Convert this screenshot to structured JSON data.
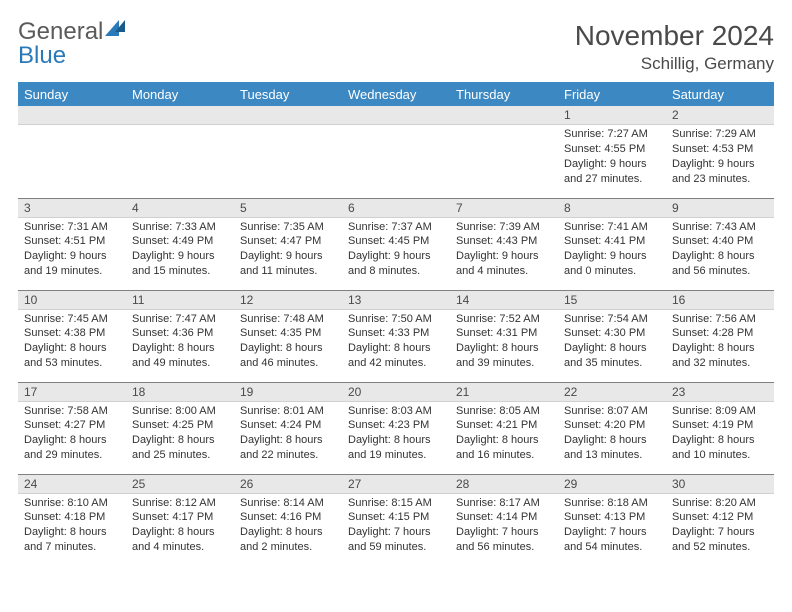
{
  "brand": {
    "top": "General",
    "bottom": "Blue"
  },
  "title": "November 2024",
  "location": "Schillig, Germany",
  "colors": {
    "header_bg": "#3b88c3",
    "header_text": "#ffffff",
    "daynum_bg": "#e8e8e8",
    "border": "#808080",
    "text": "#333333",
    "title_text": "#4a4a4a",
    "logo_blue": "#2a7ab9"
  },
  "weekdays": [
    "Sunday",
    "Monday",
    "Tuesday",
    "Wednesday",
    "Thursday",
    "Friday",
    "Saturday"
  ],
  "weeks": [
    [
      {
        "n": "",
        "sr": "",
        "ss": "",
        "dl": ""
      },
      {
        "n": "",
        "sr": "",
        "ss": "",
        "dl": ""
      },
      {
        "n": "",
        "sr": "",
        "ss": "",
        "dl": ""
      },
      {
        "n": "",
        "sr": "",
        "ss": "",
        "dl": ""
      },
      {
        "n": "",
        "sr": "",
        "ss": "",
        "dl": ""
      },
      {
        "n": "1",
        "sr": "Sunrise: 7:27 AM",
        "ss": "Sunset: 4:55 PM",
        "dl": "Daylight: 9 hours and 27 minutes."
      },
      {
        "n": "2",
        "sr": "Sunrise: 7:29 AM",
        "ss": "Sunset: 4:53 PM",
        "dl": "Daylight: 9 hours and 23 minutes."
      }
    ],
    [
      {
        "n": "3",
        "sr": "Sunrise: 7:31 AM",
        "ss": "Sunset: 4:51 PM",
        "dl": "Daylight: 9 hours and 19 minutes."
      },
      {
        "n": "4",
        "sr": "Sunrise: 7:33 AM",
        "ss": "Sunset: 4:49 PM",
        "dl": "Daylight: 9 hours and 15 minutes."
      },
      {
        "n": "5",
        "sr": "Sunrise: 7:35 AM",
        "ss": "Sunset: 4:47 PM",
        "dl": "Daylight: 9 hours and 11 minutes."
      },
      {
        "n": "6",
        "sr": "Sunrise: 7:37 AM",
        "ss": "Sunset: 4:45 PM",
        "dl": "Daylight: 9 hours and 8 minutes."
      },
      {
        "n": "7",
        "sr": "Sunrise: 7:39 AM",
        "ss": "Sunset: 4:43 PM",
        "dl": "Daylight: 9 hours and 4 minutes."
      },
      {
        "n": "8",
        "sr": "Sunrise: 7:41 AM",
        "ss": "Sunset: 4:41 PM",
        "dl": "Daylight: 9 hours and 0 minutes."
      },
      {
        "n": "9",
        "sr": "Sunrise: 7:43 AM",
        "ss": "Sunset: 4:40 PM",
        "dl": "Daylight: 8 hours and 56 minutes."
      }
    ],
    [
      {
        "n": "10",
        "sr": "Sunrise: 7:45 AM",
        "ss": "Sunset: 4:38 PM",
        "dl": "Daylight: 8 hours and 53 minutes."
      },
      {
        "n": "11",
        "sr": "Sunrise: 7:47 AM",
        "ss": "Sunset: 4:36 PM",
        "dl": "Daylight: 8 hours and 49 minutes."
      },
      {
        "n": "12",
        "sr": "Sunrise: 7:48 AM",
        "ss": "Sunset: 4:35 PM",
        "dl": "Daylight: 8 hours and 46 minutes."
      },
      {
        "n": "13",
        "sr": "Sunrise: 7:50 AM",
        "ss": "Sunset: 4:33 PM",
        "dl": "Daylight: 8 hours and 42 minutes."
      },
      {
        "n": "14",
        "sr": "Sunrise: 7:52 AM",
        "ss": "Sunset: 4:31 PM",
        "dl": "Daylight: 8 hours and 39 minutes."
      },
      {
        "n": "15",
        "sr": "Sunrise: 7:54 AM",
        "ss": "Sunset: 4:30 PM",
        "dl": "Daylight: 8 hours and 35 minutes."
      },
      {
        "n": "16",
        "sr": "Sunrise: 7:56 AM",
        "ss": "Sunset: 4:28 PM",
        "dl": "Daylight: 8 hours and 32 minutes."
      }
    ],
    [
      {
        "n": "17",
        "sr": "Sunrise: 7:58 AM",
        "ss": "Sunset: 4:27 PM",
        "dl": "Daylight: 8 hours and 29 minutes."
      },
      {
        "n": "18",
        "sr": "Sunrise: 8:00 AM",
        "ss": "Sunset: 4:25 PM",
        "dl": "Daylight: 8 hours and 25 minutes."
      },
      {
        "n": "19",
        "sr": "Sunrise: 8:01 AM",
        "ss": "Sunset: 4:24 PM",
        "dl": "Daylight: 8 hours and 22 minutes."
      },
      {
        "n": "20",
        "sr": "Sunrise: 8:03 AM",
        "ss": "Sunset: 4:23 PM",
        "dl": "Daylight: 8 hours and 19 minutes."
      },
      {
        "n": "21",
        "sr": "Sunrise: 8:05 AM",
        "ss": "Sunset: 4:21 PM",
        "dl": "Daylight: 8 hours and 16 minutes."
      },
      {
        "n": "22",
        "sr": "Sunrise: 8:07 AM",
        "ss": "Sunset: 4:20 PM",
        "dl": "Daylight: 8 hours and 13 minutes."
      },
      {
        "n": "23",
        "sr": "Sunrise: 8:09 AM",
        "ss": "Sunset: 4:19 PM",
        "dl": "Daylight: 8 hours and 10 minutes."
      }
    ],
    [
      {
        "n": "24",
        "sr": "Sunrise: 8:10 AM",
        "ss": "Sunset: 4:18 PM",
        "dl": "Daylight: 8 hours and 7 minutes."
      },
      {
        "n": "25",
        "sr": "Sunrise: 8:12 AM",
        "ss": "Sunset: 4:17 PM",
        "dl": "Daylight: 8 hours and 4 minutes."
      },
      {
        "n": "26",
        "sr": "Sunrise: 8:14 AM",
        "ss": "Sunset: 4:16 PM",
        "dl": "Daylight: 8 hours and 2 minutes."
      },
      {
        "n": "27",
        "sr": "Sunrise: 8:15 AM",
        "ss": "Sunset: 4:15 PM",
        "dl": "Daylight: 7 hours and 59 minutes."
      },
      {
        "n": "28",
        "sr": "Sunrise: 8:17 AM",
        "ss": "Sunset: 4:14 PM",
        "dl": "Daylight: 7 hours and 56 minutes."
      },
      {
        "n": "29",
        "sr": "Sunrise: 8:18 AM",
        "ss": "Sunset: 4:13 PM",
        "dl": "Daylight: 7 hours and 54 minutes."
      },
      {
        "n": "30",
        "sr": "Sunrise: 8:20 AM",
        "ss": "Sunset: 4:12 PM",
        "dl": "Daylight: 7 hours and 52 minutes."
      }
    ]
  ]
}
